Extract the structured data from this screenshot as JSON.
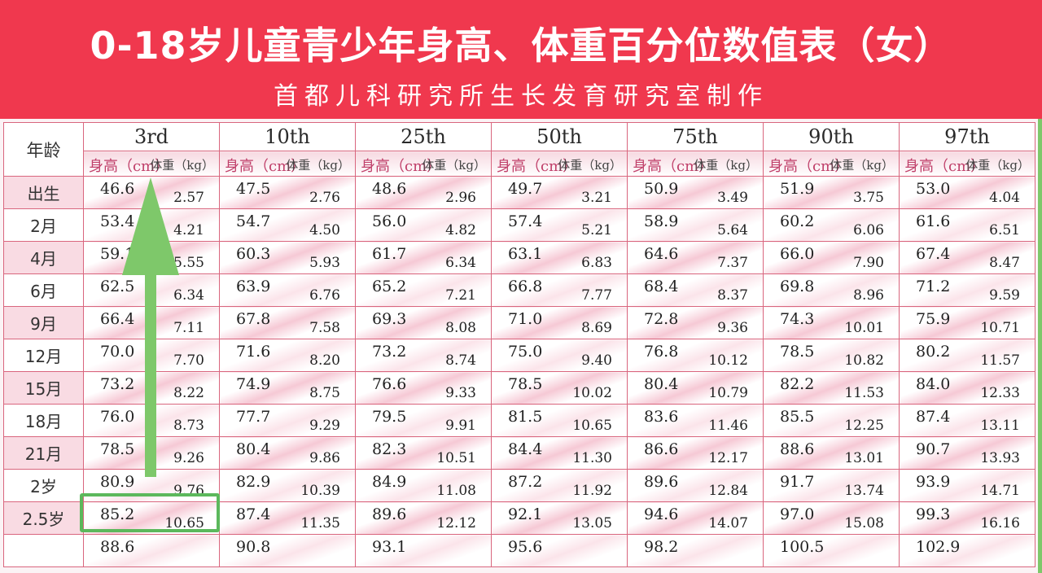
{
  "header": {
    "title": "0-18岁儿童青少年身高、体重百分位数值表（女）",
    "subtitle": "首都儿科研究所生长发育研究室制作"
  },
  "table": {
    "age_header": "年龄",
    "height_label": "身高（cm）",
    "weight_label": "体重（kg）",
    "percentiles": [
      "3rd",
      "10th",
      "25th",
      "50th",
      "75th",
      "90th",
      "97th"
    ],
    "rows": [
      {
        "age": "出生",
        "values": [
          [
            "46.6",
            "2.57"
          ],
          [
            "47.5",
            "2.76"
          ],
          [
            "48.6",
            "2.96"
          ],
          [
            "49.7",
            "3.21"
          ],
          [
            "50.9",
            "3.49"
          ],
          [
            "51.9",
            "3.75"
          ],
          [
            "53.0",
            "4.04"
          ]
        ]
      },
      {
        "age": "2月",
        "values": [
          [
            "53.4",
            "4.21"
          ],
          [
            "54.7",
            "4.50"
          ],
          [
            "56.0",
            "4.82"
          ],
          [
            "57.4",
            "5.21"
          ],
          [
            "58.9",
            "5.64"
          ],
          [
            "60.2",
            "6.06"
          ],
          [
            "61.6",
            "6.51"
          ]
        ]
      },
      {
        "age": "4月",
        "values": [
          [
            "59.1",
            "5.55"
          ],
          [
            "60.3",
            "5.93"
          ],
          [
            "61.7",
            "6.34"
          ],
          [
            "63.1",
            "6.83"
          ],
          [
            "64.6",
            "7.37"
          ],
          [
            "66.0",
            "7.90"
          ],
          [
            "67.4",
            "8.47"
          ]
        ]
      },
      {
        "age": "6月",
        "values": [
          [
            "62.5",
            "6.34"
          ],
          [
            "63.9",
            "6.76"
          ],
          [
            "65.2",
            "7.21"
          ],
          [
            "66.8",
            "7.77"
          ],
          [
            "68.4",
            "8.37"
          ],
          [
            "69.8",
            "8.96"
          ],
          [
            "71.2",
            "9.59"
          ]
        ]
      },
      {
        "age": "9月",
        "values": [
          [
            "66.4",
            "7.11"
          ],
          [
            "67.8",
            "7.58"
          ],
          [
            "69.3",
            "8.08"
          ],
          [
            "71.0",
            "8.69"
          ],
          [
            "72.8",
            "9.36"
          ],
          [
            "74.3",
            "10.01"
          ],
          [
            "75.9",
            "10.71"
          ]
        ]
      },
      {
        "age": "12月",
        "values": [
          [
            "70.0",
            "7.70"
          ],
          [
            "71.6",
            "8.20"
          ],
          [
            "73.2",
            "8.74"
          ],
          [
            "75.0",
            "9.40"
          ],
          [
            "76.8",
            "10.12"
          ],
          [
            "78.5",
            "10.82"
          ],
          [
            "80.2",
            "11.57"
          ]
        ]
      },
      {
        "age": "15月",
        "values": [
          [
            "73.2",
            "8.22"
          ],
          [
            "74.9",
            "8.75"
          ],
          [
            "76.6",
            "9.33"
          ],
          [
            "78.5",
            "10.02"
          ],
          [
            "80.4",
            "10.79"
          ],
          [
            "82.2",
            "11.53"
          ],
          [
            "84.0",
            "12.33"
          ]
        ]
      },
      {
        "age": "18月",
        "values": [
          [
            "76.0",
            "8.73"
          ],
          [
            "77.7",
            "9.29"
          ],
          [
            "79.5",
            "9.91"
          ],
          [
            "81.5",
            "10.65"
          ],
          [
            "83.6",
            "11.46"
          ],
          [
            "85.5",
            "12.25"
          ],
          [
            "87.4",
            "13.11"
          ]
        ]
      },
      {
        "age": "21月",
        "values": [
          [
            "78.5",
            "9.26"
          ],
          [
            "80.4",
            "9.86"
          ],
          [
            "82.3",
            "10.51"
          ],
          [
            "84.4",
            "11.30"
          ],
          [
            "86.6",
            "12.17"
          ],
          [
            "88.6",
            "13.01"
          ],
          [
            "90.7",
            "13.93"
          ]
        ]
      },
      {
        "age": "2岁",
        "values": [
          [
            "80.9",
            "9.76"
          ],
          [
            "82.9",
            "10.39"
          ],
          [
            "84.9",
            "11.08"
          ],
          [
            "87.2",
            "11.92"
          ],
          [
            "89.6",
            "12.84"
          ],
          [
            "91.7",
            "13.74"
          ],
          [
            "93.9",
            "14.71"
          ]
        ]
      },
      {
        "age": "2.5岁",
        "values": [
          [
            "85.2",
            "10.65"
          ],
          [
            "87.4",
            "11.35"
          ],
          [
            "89.6",
            "12.12"
          ],
          [
            "92.1",
            "13.05"
          ],
          [
            "94.6",
            "14.07"
          ],
          [
            "97.0",
            "15.08"
          ],
          [
            "99.3",
            "16.16"
          ]
        ]
      },
      {
        "age": "",
        "values": [
          [
            "88.6",
            ""
          ],
          [
            "90.8",
            ""
          ],
          [
            "93.1",
            ""
          ],
          [
            "95.6",
            ""
          ],
          [
            "98.2",
            ""
          ],
          [
            "100.5",
            ""
          ],
          [
            "102.9",
            ""
          ]
        ]
      }
    ]
  },
  "annotations": {
    "arrow_color": "#7ec86a",
    "highlight_color": "#5cb85c",
    "banner_color": "#f0384e"
  }
}
